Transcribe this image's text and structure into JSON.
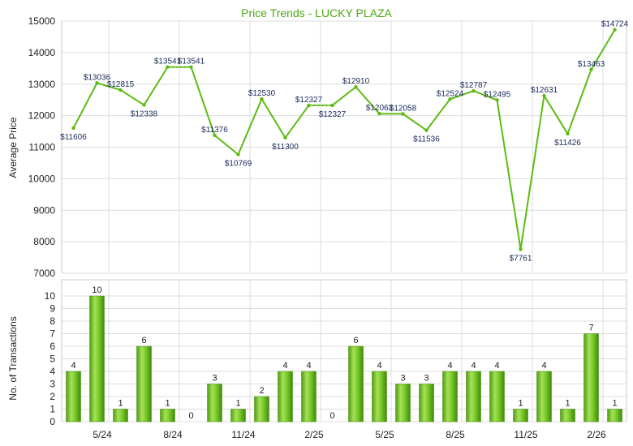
{
  "chart_data": [
    {
      "type": "line",
      "title": "Price Trends - LUCKY PLAZA",
      "ylabel": "Average Price",
      "ylim": [
        7000,
        15000
      ],
      "yticks": [
        7000,
        8000,
        9000,
        10000,
        11000,
        12000,
        13000,
        14000,
        15000
      ],
      "grid": true,
      "color": "#5cbb12",
      "series": [
        {
          "values": [
            11606,
            13036,
            12815,
            12338,
            13541,
            13541,
            11376,
            10769,
            12530,
            11300,
            12327,
            12327,
            12910,
            12062,
            12058,
            11536,
            12524,
            12787,
            12495,
            7761,
            12631,
            11426,
            13463,
            14724
          ],
          "labels": [
            "$11606",
            "$13036",
            "$12815",
            "$12338",
            "$13541",
            "$13541",
            "$11376",
            "$10769",
            "$12530",
            "$11300",
            "$12327",
            "$12327",
            "$12910",
            "$12062",
            "$12058",
            "$11536",
            "$12524",
            "$12787",
            "$12495",
            "$7761",
            "$12631",
            "$11426",
            "$13463",
            "$14724"
          ],
          "interpolated_segments": [
            4,
            10
          ]
        }
      ]
    },
    {
      "type": "bar",
      "ylabel": "No. of Transactions",
      "ylim": [
        0,
        10
      ],
      "yticks": [
        0,
        1,
        2,
        3,
        4,
        5,
        6,
        7,
        8,
        9,
        10
      ],
      "grid": true,
      "color": "#6cc21a",
      "x_tick_labels": [
        {
          "after_index": 1,
          "label": "5/24"
        },
        {
          "after_index": 4,
          "label": "8/24"
        },
        {
          "after_index": 7,
          "label": "11/24"
        },
        {
          "after_index": 10,
          "label": "2/25"
        },
        {
          "after_index": 13,
          "label": "5/25"
        },
        {
          "after_index": 16,
          "label": "8/25"
        },
        {
          "after_index": 19,
          "label": "11/25"
        },
        {
          "after_index": 22,
          "label": "2/26"
        }
      ],
      "series": [
        {
          "values": [
            4,
            10,
            1,
            6,
            1,
            0,
            3,
            1,
            2,
            4,
            4,
            0,
            6,
            4,
            3,
            3,
            4,
            4,
            4,
            1,
            4,
            1,
            7,
            1
          ]
        }
      ]
    }
  ]
}
